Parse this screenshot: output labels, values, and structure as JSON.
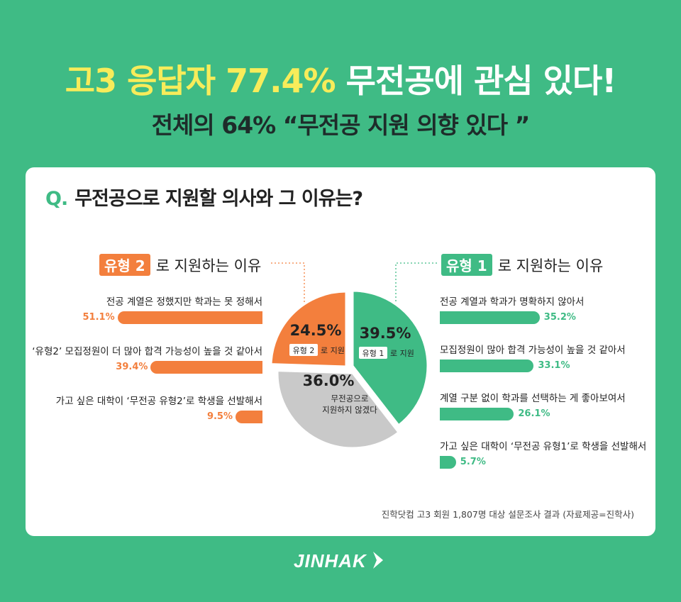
{
  "header": {
    "headline_part1": "고3 응답자 77.4%",
    "headline_part2": "무전공에 관심 있다!",
    "subhead": "전체의 64% “무전공 지원 의향 있다 ”"
  },
  "question": {
    "mark": "Q.",
    "text": "무전공으로 지원할 의사와 그 이유는?"
  },
  "colors": {
    "orange": "#f37f3d",
    "green": "#3fbb85",
    "gray": "#c9c9c9",
    "yellow": "#f7ec5a"
  },
  "chart_data": [
    {
      "type": "pie",
      "title": "무전공으로 지원할 의사",
      "slices": [
        {
          "value": 39.5,
          "pct_label": "39.5%",
          "tag": "유형 1",
          "tag_suffix": "로 지원"
        },
        {
          "value": 36.0,
          "pct_label": "36.0%",
          "label_line1": "무전공으로",
          "label_line2": "지원하지 않겠다"
        },
        {
          "value": 24.5,
          "pct_label": "24.5%",
          "tag": "유형 2",
          "tag_suffix": "로 지원"
        }
      ]
    },
    {
      "type": "bar",
      "title_tag": "유형 2",
      "title_rest": "로 지원하는 이유",
      "orientation": "horizontal-right-aligned",
      "xlim": [
        0,
        60
      ],
      "items": [
        {
          "label": "전공 계열은 정했지만 학과는 못 정해서",
          "value": 51.1,
          "value_label": "51.1%"
        },
        {
          "label": "‘유형2’ 모집정원이 더 많아 합격 가능성이 높을 것 같아서",
          "value": 39.4,
          "value_label": "39.4%"
        },
        {
          "label": "가고 싶은 대학이 ‘무전공 유형2’로 학생을 선발해서",
          "value": 9.5,
          "value_label": "9.5%"
        }
      ]
    },
    {
      "type": "bar",
      "title_tag": "유형 1",
      "title_rest": "로 지원하는 이유",
      "orientation": "horizontal-left-aligned",
      "xlim": [
        0,
        60
      ],
      "items": [
        {
          "label": "전공 계열과 학과가 명확하지 않아서",
          "value": 35.2,
          "value_label": "35.2%"
        },
        {
          "label": "모집정원이 많아 합격 가능성이 높을 것 같아서",
          "value": 33.1,
          "value_label": "33.1%"
        },
        {
          "label": "계열 구분 없이 학과를 선택하는 게 좋아보여서",
          "value": 26.1,
          "value_label": "26.1%"
        },
        {
          "label": "가고 싶은 대학이 ‘무전공 유형1’로 학생을 선발해서",
          "value": 5.7,
          "value_label": "5.7%"
        }
      ]
    }
  ],
  "source": "진학닷컴 고3 회원 1,807명 대상 설문조사 결과 (자료제공=진학사)",
  "logo": "JINHAK"
}
